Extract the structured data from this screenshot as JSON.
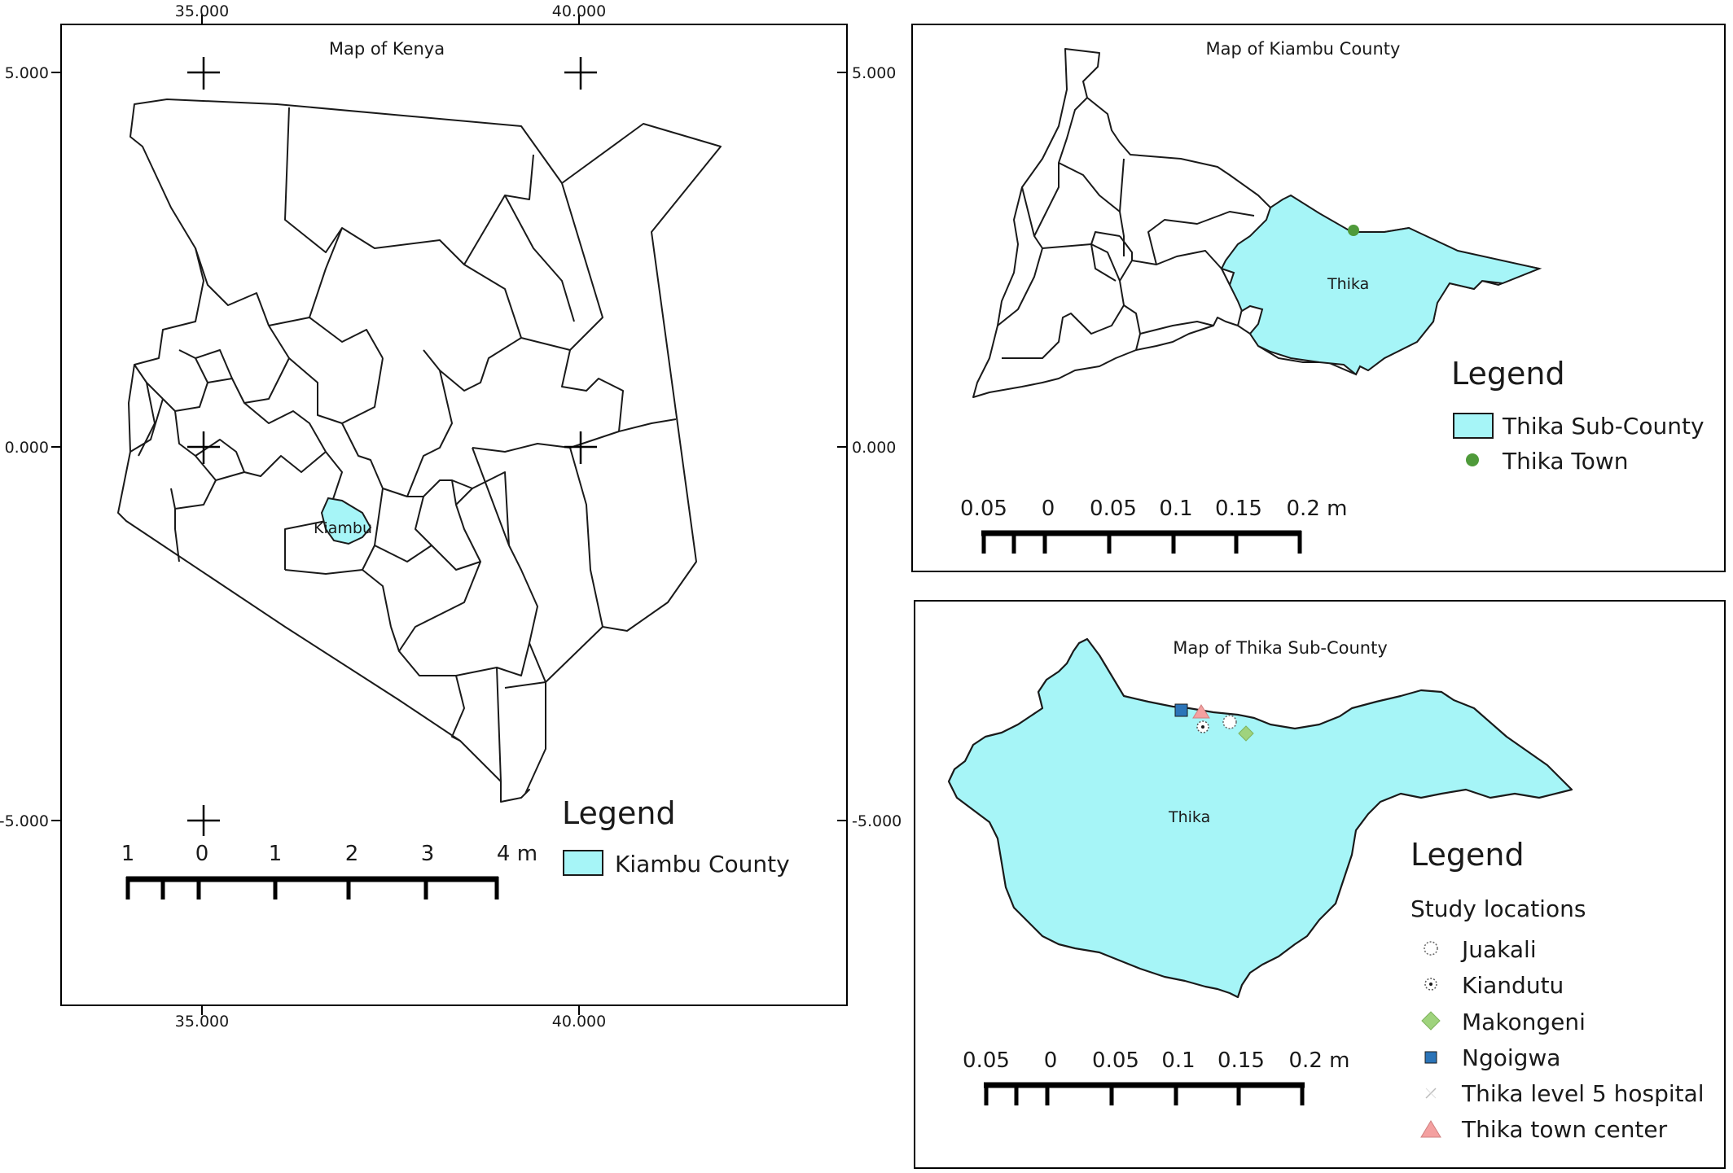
{
  "kenya_panel": {
    "title": "Map of Kenya",
    "x_ticks": [
      "35.000",
      "40.000"
    ],
    "y_ticks": [
      "5.000",
      "0.000",
      "-5.000"
    ],
    "highlight_label": "Kiambu",
    "scale_labels": [
      "1",
      "0",
      "1",
      "2",
      "3",
      "4 m"
    ],
    "legend_title": "Legend",
    "legend_items": [
      {
        "label": "Kiambu County",
        "color": "#a6f5f7"
      }
    ]
  },
  "kiambu_panel": {
    "title": "Map of Kiambu County",
    "highlight_label": "Thika",
    "scale_labels": [
      "0.05",
      "0",
      "0.05",
      "0.1",
      "0.15",
      "0.2 m"
    ],
    "legend_title": "Legend",
    "legend_items": [
      {
        "label": "Thika Sub-County",
        "color": "#a6f5f7"
      },
      {
        "label": "Thika Town",
        "color": "#4f9a3a"
      }
    ]
  },
  "thika_panel": {
    "title": "Map of Thika Sub-County",
    "highlight_label": "Thika",
    "scale_labels": [
      "0.05",
      "0",
      "0.05",
      "0.1",
      "0.15",
      "0.2 m"
    ],
    "legend_title": "Legend",
    "legend_subtitle": "Study locations",
    "legend_items": [
      {
        "label": "Juakali",
        "symbol": "dotted-circle-icon"
      },
      {
        "label": "Kiandutu",
        "symbol": "dotted-dot-icon"
      },
      {
        "label": "Makongeni",
        "symbol": "diamond-icon",
        "color": "#9fd37d"
      },
      {
        "label": "Ngoigwa",
        "symbol": "square-icon",
        "color": "#2b74b8"
      },
      {
        "label": "Thika level 5 hospital",
        "symbol": "cross-icon"
      },
      {
        "label": "Thika town center",
        "symbol": "triangle-icon",
        "color": "#f4a0a0"
      }
    ]
  },
  "colors": {
    "highlight": "#a6f5f7",
    "outline": "#1a1a1a"
  }
}
